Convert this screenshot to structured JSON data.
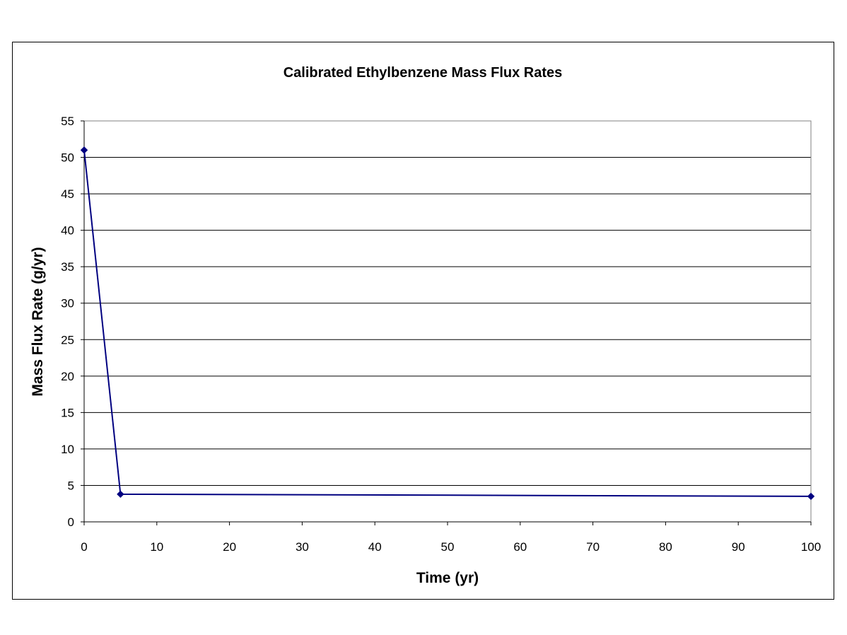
{
  "chart_data": {
    "type": "line",
    "title": "Calibrated Ethylbenzene Mass Flux Rates",
    "xlabel": "Time (yr)",
    "ylabel": "Mass Flux Rate (g/yr)",
    "xlim": [
      0,
      100
    ],
    "ylim": [
      0,
      55
    ],
    "x_ticks": [
      "0",
      "10",
      "20",
      "30",
      "40",
      "50",
      "60",
      "70",
      "80",
      "90",
      "100"
    ],
    "y_ticks": [
      "0",
      "5",
      "10",
      "15",
      "20",
      "25",
      "30",
      "35",
      "40",
      "45",
      "50",
      "55"
    ],
    "grid": "horizontal",
    "legend": "none",
    "series": [
      {
        "color": "#000080",
        "x": [
          0,
          5,
          100
        ],
        "y": [
          51,
          3.8,
          3.5
        ]
      }
    ]
  }
}
